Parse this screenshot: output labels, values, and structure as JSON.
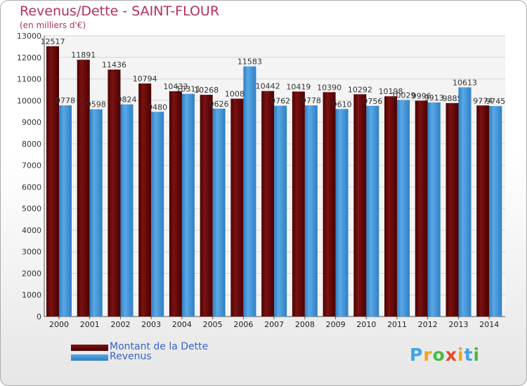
{
  "title": "Revenus/Dette - SAINT-FLOUR",
  "subtitle": "(en milliers d'€)",
  "legend": {
    "debt_label": "Montant de la Dette",
    "revenue_label": "Revenus"
  },
  "logo": {
    "letters": [
      "P",
      "r",
      "o",
      "x",
      "i",
      "t",
      "i"
    ],
    "colors": [
      "#3ea3e8",
      "#f2a41e",
      "#4cb848",
      "#e8452a",
      "#f2a41e",
      "#3ea3e8",
      "#4cb848"
    ]
  },
  "colors": {
    "debt": "#7a1212",
    "debt_dark": "#4a0000",
    "revenue": "#5aa8e6",
    "revenue_dark": "#2f7fc4",
    "title": "#b5305a",
    "legend_text": "#3a63c8"
  },
  "chart_data": {
    "type": "bar",
    "categories": [
      "2000",
      "2001",
      "2002",
      "2003",
      "2004",
      "2005",
      "2006",
      "2007",
      "2008",
      "2009",
      "2010",
      "2011",
      "2012",
      "2013",
      "2014"
    ],
    "series": [
      {
        "name": "Montant de la Dette",
        "values": [
          12517,
          11891,
          11436,
          10794,
          10433,
          10268,
          10088,
          10442,
          10419,
          10390,
          10292,
          10198,
          9996,
          9885,
          9774
        ]
      },
      {
        "name": "Revenus",
        "values": [
          9778,
          9598,
          9824,
          9480,
          10311,
          9626,
          11583,
          9762,
          9778,
          9610,
          9756,
          10029,
          9913,
          10613,
          9745
        ]
      }
    ],
    "ylim": [
      0,
      13000
    ],
    "yticks": [
      0,
      1000,
      2000,
      3000,
      4000,
      5000,
      6000,
      7000,
      8000,
      9000,
      10000,
      11000,
      12000,
      13000
    ],
    "grid": true,
    "legend_position": "bottom-left"
  }
}
